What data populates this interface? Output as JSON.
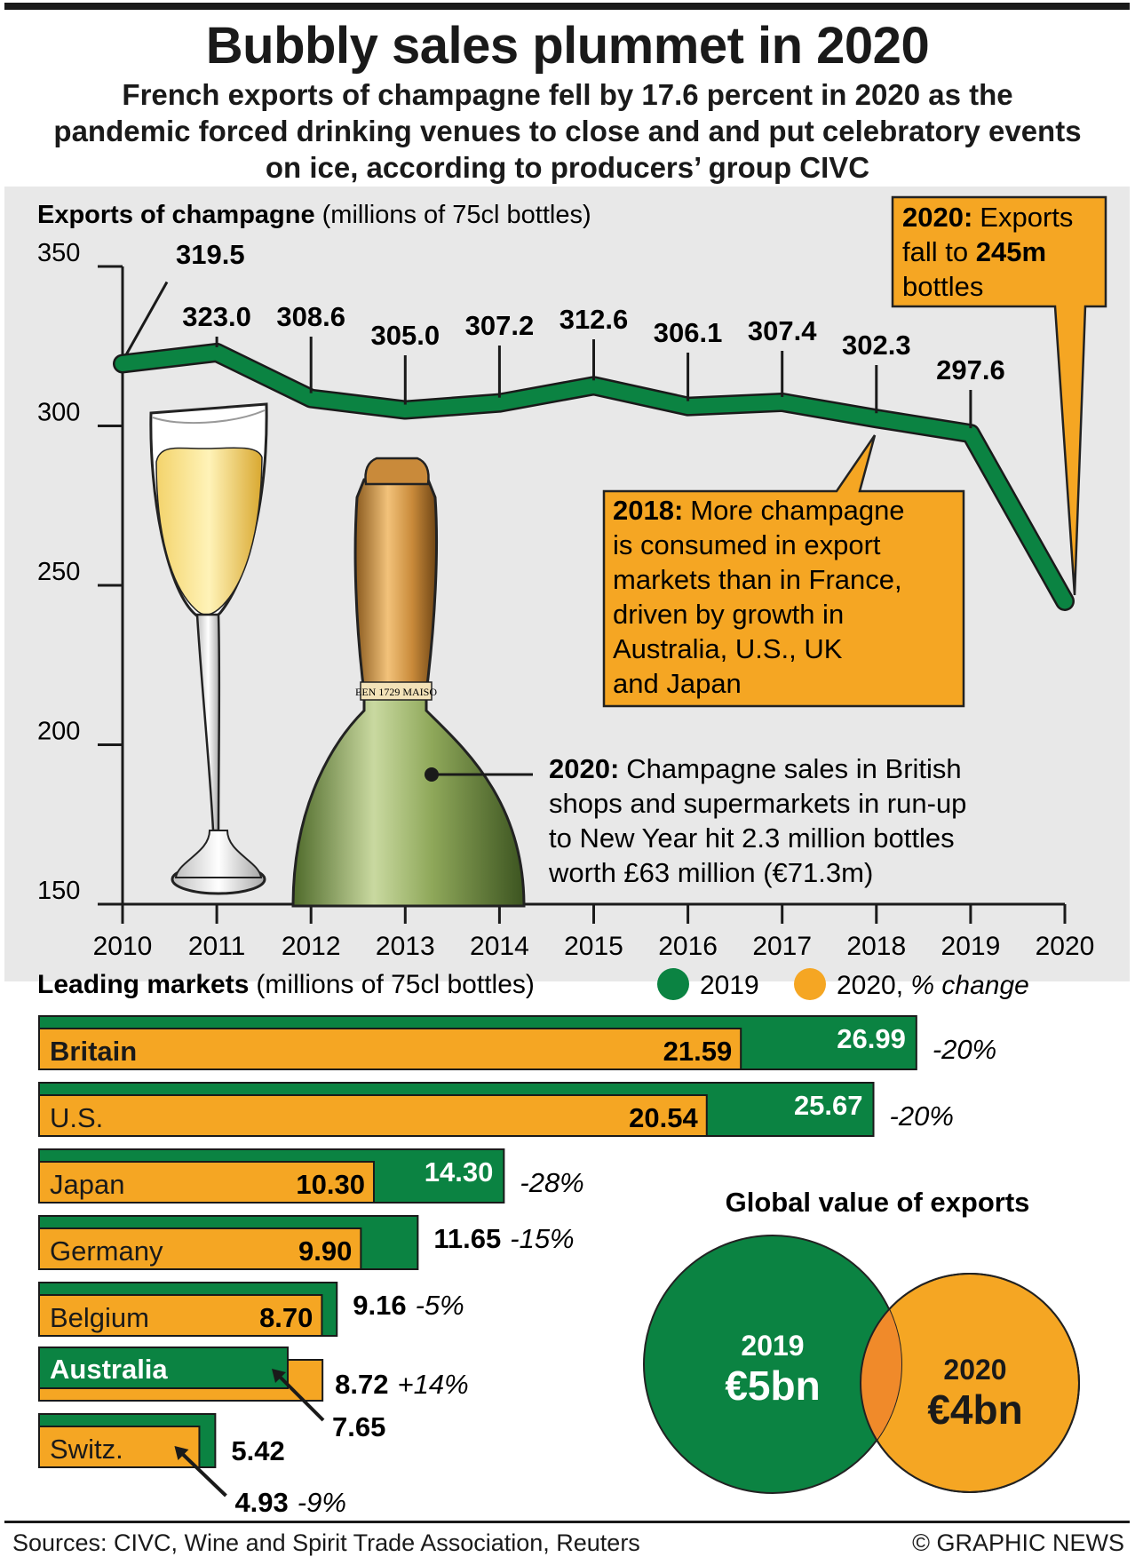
{
  "header": {
    "title": "Bubbly sales plummet in 2020",
    "subtitle": "French exports of champagne fell by 17.6 percent in 2020 as the pandemic forced drinking venues to close and and put celebratory events on ice, according to producers’ group CIVC"
  },
  "colors": {
    "green": "#0b8342",
    "orange": "#f5a623",
    "overlap": "#f08a2a",
    "panel": "#e8e8e8",
    "ink": "#1a1a1a"
  },
  "chart_data": [
    {
      "type": "line",
      "title": "Exports of champagne",
      "title_unit": "(millions of 75cl bottles)",
      "ylim": [
        150,
        350
      ],
      "y_ticks": [
        350,
        300,
        250,
        200,
        150
      ],
      "x": [
        "2010",
        "2011",
        "2012",
        "2013",
        "2014",
        "2015",
        "2016",
        "2017",
        "2018",
        "2019",
        "2020"
      ],
      "series": [
        {
          "values": [
            319.5,
            323.0,
            308.6,
            305.0,
            307.2,
            312.6,
            306.1,
            307.4,
            302.3,
            297.6,
            245
          ]
        }
      ],
      "data_labels": [
        "319.5",
        "323.0",
        "308.6",
        "305.0",
        "307.2",
        "312.6",
        "306.1",
        "307.4",
        "302.3",
        "297.6"
      ],
      "annotations": [
        {
          "year": "2020",
          "bold": "2020:",
          "lines": [
            "Exports",
            "fall to ",
            "245m",
            "bottles"
          ]
        },
        {
          "year": "2018",
          "bold": "2018:",
          "lines": [
            "More champagne",
            "is consumed in export",
            "markets than in France,",
            "driven by growth in",
            "Australia, U.S., UK",
            "and Japan"
          ]
        },
        {
          "year": "2020",
          "bold": "2020:",
          "lines": [
            "Champagne sales in British",
            "shops and supermarkets in run-up",
            "to New Year hit 2.3 million bottles",
            "worth £63 million (€71.3m)"
          ]
        }
      ]
    },
    {
      "type": "bar",
      "title": "Leading markets",
      "title_unit": "(millions of 75cl bottles)",
      "legend": [
        {
          "name": "2019"
        },
        {
          "name": "2020, ",
          "italic": "% change"
        }
      ],
      "categories": [
        "Britain",
        "U.S.",
        "Japan",
        "Germany",
        "Belgium",
        "Australia",
        "Switz."
      ],
      "series": [
        {
          "name": "2019",
          "values": [
            26.99,
            25.67,
            14.3,
            11.65,
            9.16,
            7.65,
            5.42
          ]
        },
        {
          "name": "2020",
          "values": [
            21.59,
            20.54,
            10.3,
            9.9,
            8.7,
            8.72,
            4.93
          ]
        }
      ],
      "change": [
        "-20%",
        "-20%",
        "-28%",
        "-15%",
        "-5%",
        "+14%",
        "-9%"
      ]
    },
    {
      "type": "pie",
      "title": "Global value of exports",
      "series": [
        {
          "name": "2019",
          "value_label": "€5bn",
          "value": 5
        },
        {
          "name": "2020",
          "value_label": "€4bn",
          "value": 4
        }
      ]
    }
  ],
  "footer": {
    "sources": "Sources: CIVC, Wine and Spirit Trade Association, Reuters",
    "credit": "© GRAPHIC NEWS"
  },
  "illustration": {
    "label_text": "EEN 1729 MAISO"
  }
}
